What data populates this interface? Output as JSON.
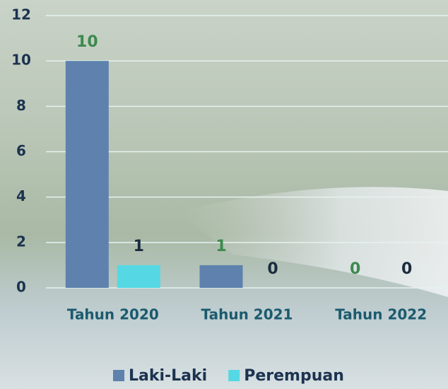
{
  "chart_data": {
    "type": "bar",
    "categories": [
      "Tahun 2020",
      "Tahun 2021",
      "Tahun 2022"
    ],
    "series": [
      {
        "name": "Laki-Laki",
        "color": "#5e82ad",
        "label_color": "#3c8a4e",
        "values": [
          10,
          1,
          0
        ]
      },
      {
        "name": "Perempuan",
        "color": "#55d8e4",
        "label_color": "#1c2c3e",
        "values": [
          1,
          0,
          0
        ]
      }
    ],
    "ylim": [
      0,
      12
    ],
    "yticks": [
      0,
      2,
      4,
      6,
      8,
      10,
      12
    ],
    "grid": true,
    "legend": "bottom"
  }
}
